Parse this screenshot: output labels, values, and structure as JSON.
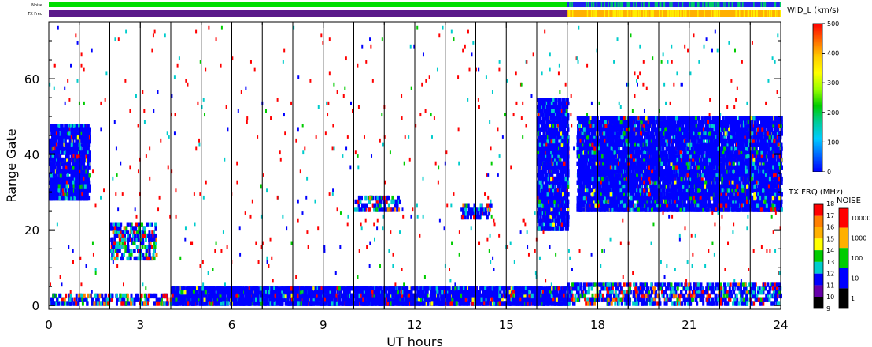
{
  "chart_data": {
    "type": "scatter",
    "xlabel": "UT hours",
    "ylabel": "Range Gate",
    "xlim": [
      0,
      24
    ],
    "ylim": [
      -1,
      75
    ],
    "x_ticks": [
      "0",
      "3",
      "6",
      "9",
      "12",
      "15",
      "18",
      "21",
      "24"
    ],
    "y_ticks": [
      "0",
      "20",
      "40",
      "60"
    ],
    "top_bars": {
      "noise_label": "Noise",
      "freq_label": "TX Freq",
      "noise_segments": [
        {
          "from": 0,
          "to": 17,
          "level": "green"
        },
        {
          "from": 17,
          "to": 24,
          "level": "blue"
        }
      ],
      "freq_segments": [
        {
          "from": 0,
          "to": 17,
          "level": "purple"
        },
        {
          "from": 17,
          "to": 24,
          "level": "orange"
        }
      ]
    },
    "width_colorbar": {
      "title": "WID_L (km/s)",
      "ticks": [
        "500",
        "400",
        "300",
        "200",
        "100",
        "0"
      ],
      "colors": [
        "#ff0000",
        "#ff7f00",
        "#ffff00",
        "#00cc00",
        "#00cccc",
        "#0000ff"
      ]
    },
    "freq_colorbar": {
      "title": "TX FRQ (MHz)",
      "ticks": [
        "18",
        "17",
        "16",
        "15",
        "14",
        "13",
        "12",
        "11",
        "10",
        "9"
      ],
      "colors": [
        "#ff0000",
        "#ff7f00",
        "#ffb000",
        "#ffff00",
        "#00cc00",
        "#00cccc",
        "#0000ff",
        "#6600aa",
        "#000000"
      ]
    },
    "noise_colorbar": {
      "title": "NOISE",
      "ticks": [
        "10000",
        "1000",
        "100",
        "10",
        "1"
      ],
      "colors": [
        "#ff0000",
        "#ffb000",
        "#00cc00",
        "#0000ff",
        "#000000"
      ]
    },
    "regions": [
      {
        "x0": 0.0,
        "x1": 1.3,
        "y0": 28,
        "y1": 48,
        "density": "dense"
      },
      {
        "x0": 2.0,
        "x1": 3.5,
        "y0": 12,
        "y1": 22,
        "density": "medium"
      },
      {
        "x0": 4.0,
        "x1": 17.0,
        "y0": 0,
        "y1": 5,
        "density": "dense"
      },
      {
        "x0": 0.0,
        "x1": 4.0,
        "y0": 0,
        "y1": 3,
        "density": "medium"
      },
      {
        "x0": 10.0,
        "x1": 11.5,
        "y0": 25,
        "y1": 29,
        "density": "medium"
      },
      {
        "x0": 13.5,
        "x1": 14.5,
        "y0": 23,
        "y1": 27,
        "density": "medium"
      },
      {
        "x0": 16.0,
        "x1": 17.0,
        "y0": 20,
        "y1": 55,
        "density": "dense"
      },
      {
        "x0": 17.3,
        "x1": 24.0,
        "y0": 25,
        "y1": 50,
        "density": "dense"
      },
      {
        "x0": 17.0,
        "x1": 24.0,
        "y0": 0,
        "y1": 6,
        "density": "medium"
      }
    ]
  }
}
